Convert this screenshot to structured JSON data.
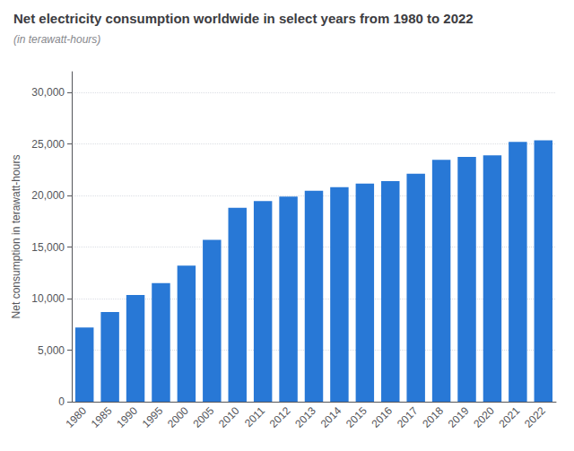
{
  "chart_data": {
    "type": "bar",
    "title": "Net electricity consumption worldwide in select years from 1980 to 2022",
    "subtitle": "(in terawatt-hours)",
    "ylabel": "Net consumption in terawatt-hours",
    "categories": [
      "1980",
      "1985",
      "1990",
      "1995",
      "2000",
      "2005",
      "2010",
      "2011",
      "2012",
      "2013",
      "2014",
      "2015",
      "2016",
      "2017",
      "2018",
      "2019",
      "2020",
      "2021",
      "2022"
    ],
    "values": [
      7200,
      8700,
      10350,
      11500,
      13200,
      15700,
      18800,
      19450,
      19900,
      20450,
      20800,
      21150,
      21400,
      22100,
      23450,
      23750,
      23900,
      25200,
      25350
    ],
    "color": "#2878d6",
    "ylim": [
      0,
      32000
    ],
    "yticks": [
      0,
      {
        "value": 5000,
        "label": "5,000"
      },
      {
        "value": 10000,
        "label": "10,000"
      },
      {
        "value": 15000,
        "label": "15,000"
      },
      {
        "value": 20000,
        "label": "20,000"
      },
      {
        "value": 25000,
        "label": "25,000"
      },
      {
        "value": 30000,
        "label": "30,000"
      }
    ],
    "grid": true
  }
}
